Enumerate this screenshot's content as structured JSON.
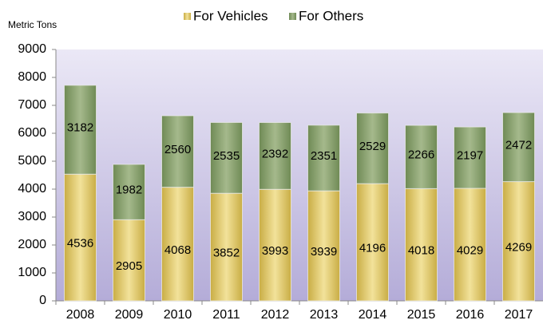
{
  "chart_data": {
    "type": "stacked_bar",
    "y_axis_label": "Metric Tons",
    "categories": [
      "2008",
      "2009",
      "2010",
      "2011",
      "2012",
      "2013",
      "2014",
      "2015",
      "2016",
      "2017"
    ],
    "series": [
      {
        "name": "For Vehicles",
        "color": "#d8c060",
        "values": [
          4536,
          2905,
          4068,
          3852,
          3993,
          3939,
          4196,
          4018,
          4029,
          4269
        ]
      },
      {
        "name": "For Others",
        "color": "#86a06a",
        "values": [
          3182,
          1982,
          2560,
          2535,
          2392,
          2351,
          2529,
          2266,
          2197,
          2472
        ]
      }
    ],
    "ylim": [
      0,
      9000
    ],
    "yticks": [
      0,
      1000,
      2000,
      3000,
      4000,
      5000,
      6000,
      7000,
      8000,
      9000
    ],
    "grid": false,
    "legend": "top"
  }
}
